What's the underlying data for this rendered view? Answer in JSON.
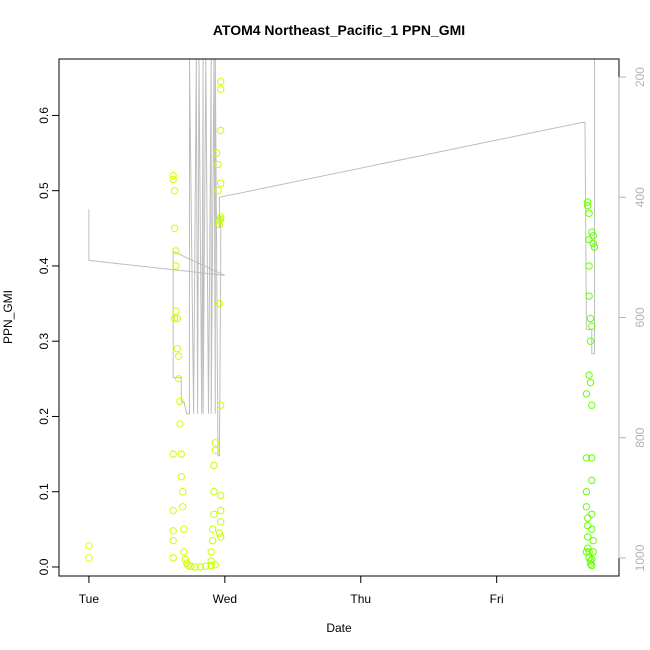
{
  "chart_data": {
    "type": "scatter",
    "title": "ATOM4 Northeast_Pacific_1 PPN_GMI",
    "xlabel": "Date",
    "ylabel": "PPN_GMI",
    "x_ticks": [
      "Tue",
      "Wed",
      "Thu",
      "Fri"
    ],
    "x_tick_days": [
      0,
      1,
      2,
      3
    ],
    "xlim_days": [
      -0.22,
      3.9
    ],
    "ylim": [
      -0.012,
      0.675
    ],
    "y_ticks": [
      0.0,
      0.1,
      0.2,
      0.3,
      0.4,
      0.5,
      0.6
    ],
    "y2_ticks": [
      200,
      400,
      600,
      800,
      1000
    ],
    "y2lim": [
      1030,
      170
    ],
    "grid": false,
    "series": [
      {
        "marker": "circle",
        "color_map": "yellow-to-green",
        "points": [
          [
            0.0,
            0.028
          ],
          [
            0.0,
            0.012
          ],
          [
            0.62,
            0.52
          ],
          [
            0.62,
            0.515
          ],
          [
            0.63,
            0.5
          ],
          [
            0.63,
            0.45
          ],
          [
            0.64,
            0.42
          ],
          [
            0.64,
            0.4
          ],
          [
            0.64,
            0.34
          ],
          [
            0.65,
            0.33
          ],
          [
            0.65,
            0.29
          ],
          [
            0.66,
            0.28
          ],
          [
            0.66,
            0.25
          ],
          [
            0.67,
            0.22
          ],
          [
            0.67,
            0.19
          ],
          [
            0.68,
            0.15
          ],
          [
            0.68,
            0.12
          ],
          [
            0.69,
            0.1
          ],
          [
            0.69,
            0.08
          ],
          [
            0.7,
            0.05
          ],
          [
            0.62,
            0.15
          ],
          [
            0.62,
            0.075
          ],
          [
            0.62,
            0.048
          ],
          [
            0.62,
            0.035
          ],
          [
            0.62,
            0.012
          ],
          [
            0.63,
            0.33
          ],
          [
            0.7,
            0.02
          ],
          [
            0.71,
            0.01
          ],
          [
            0.72,
            0.005
          ],
          [
            0.73,
            0.002
          ],
          [
            0.75,
            0.001
          ],
          [
            0.78,
            0.0
          ],
          [
            0.82,
            0.0
          ],
          [
            0.86,
            0.001
          ],
          [
            0.9,
            0.002
          ],
          [
            0.93,
            0.003
          ],
          [
            0.9,
            0.008
          ],
          [
            0.9,
            0.02
          ],
          [
            0.91,
            0.035
          ],
          [
            0.91,
            0.05
          ],
          [
            0.92,
            0.07
          ],
          [
            0.92,
            0.1
          ],
          [
            0.92,
            0.135
          ],
          [
            0.93,
            0.155
          ],
          [
            0.93,
            0.165
          ],
          [
            0.94,
            0.55
          ],
          [
            0.95,
            0.535
          ],
          [
            0.95,
            0.5
          ],
          [
            0.96,
            0.46
          ],
          [
            0.96,
            0.455
          ],
          [
            0.97,
            0.462
          ],
          [
            0.97,
            0.465
          ],
          [
            0.96,
            0.35
          ],
          [
            0.97,
            0.645
          ],
          [
            0.97,
            0.635
          ],
          [
            0.97,
            0.58
          ],
          [
            0.97,
            0.51
          ],
          [
            0.97,
            0.215
          ],
          [
            0.97,
            0.095
          ],
          [
            0.97,
            0.075
          ],
          [
            0.97,
            0.06
          ],
          [
            0.97,
            0.04
          ],
          [
            0.96,
            0.045
          ],
          [
            3.67,
            0.485
          ],
          [
            3.67,
            0.48
          ],
          [
            3.68,
            0.47
          ],
          [
            3.68,
            0.435
          ],
          [
            3.68,
            0.4
          ],
          [
            3.68,
            0.36
          ],
          [
            3.69,
            0.33
          ],
          [
            3.69,
            0.3
          ],
          [
            3.68,
            0.255
          ],
          [
            3.69,
            0.245
          ],
          [
            3.7,
            0.32
          ],
          [
            3.7,
            0.445
          ],
          [
            3.71,
            0.44
          ],
          [
            3.71,
            0.43
          ],
          [
            3.72,
            0.425
          ],
          [
            3.7,
            0.215
          ],
          [
            3.7,
            0.145
          ],
          [
            3.7,
            0.115
          ],
          [
            3.66,
            0.23
          ],
          [
            3.66,
            0.145
          ],
          [
            3.66,
            0.1
          ],
          [
            3.66,
            0.08
          ],
          [
            3.67,
            0.065
          ],
          [
            3.67,
            0.055
          ],
          [
            3.67,
            0.04
          ],
          [
            3.67,
            0.025
          ],
          [
            3.68,
            0.02
          ],
          [
            3.68,
            0.012
          ],
          [
            3.69,
            0.008
          ],
          [
            3.69,
            0.004
          ],
          [
            3.7,
            0.002
          ],
          [
            3.7,
            0.01
          ],
          [
            3.71,
            0.02
          ],
          [
            3.71,
            0.035
          ],
          [
            3.7,
            0.07
          ],
          [
            3.7,
            0.05
          ],
          [
            3.66,
            0.02
          ]
        ]
      },
      {
        "type": "line",
        "axis": "right",
        "color": "#bebebe",
        "x": [
          0.0,
          0.0,
          1.0,
          1.0,
          0.62,
          0.62,
          0.63,
          0.65,
          0.67,
          0.68,
          0.68,
          0.7,
          0.72,
          0.74,
          0.74,
          0.77,
          0.79,
          0.8,
          0.81,
          0.83,
          0.84,
          0.84,
          0.86,
          0.88,
          0.9,
          0.9,
          0.92,
          0.93,
          0.93,
          0.95,
          0.96,
          0.97,
          0.97,
          0.97,
          0.96,
          0.96,
          3.64,
          3.65,
          3.66,
          3.68,
          3.7,
          3.7,
          3.71,
          3.72,
          3.72,
          3.7,
          3.7
        ],
        "y": [
          420,
          505,
          530,
          530,
          490,
          700,
          700,
          700,
          700,
          700,
          740,
          740,
          760,
          760,
          170,
          760,
          170,
          760,
          170,
          760,
          170,
          760,
          170,
          760,
          170,
          760,
          170,
          760,
          170,
          830,
          830,
          520,
          430,
          440,
          450,
          400,
          275,
          275,
          620,
          620,
          620,
          660,
          660,
          660,
          170,
          170,
          170
        ]
      }
    ]
  }
}
